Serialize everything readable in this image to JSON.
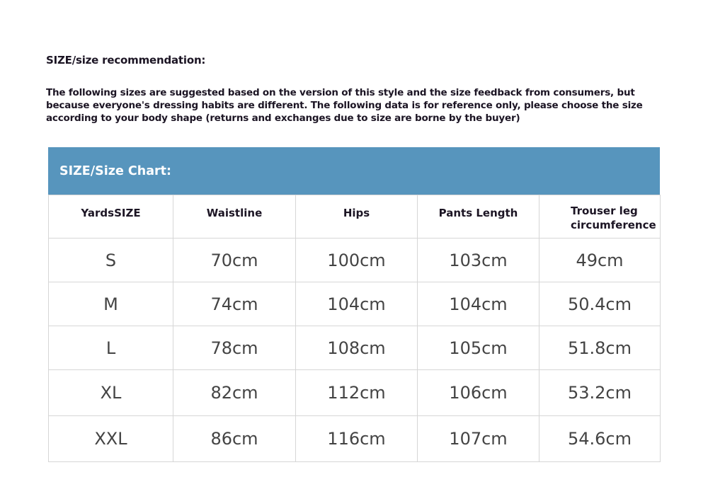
{
  "title": "SIZE/size recommendation:",
  "description": [
    "The following sizes are suggested based on the version of this style and the size feedback from consumers, but",
    "because everyone's dressing habits are different. The following data is for reference only, please choose the size",
    "according to your body shape (returns and exchanges due to size are borne by the buyer)"
  ],
  "chart": {
    "banner": "SIZE/Size Chart:",
    "banner_color": "#5795bd",
    "columns": [
      "YardsSIZE",
      "Waistline",
      "Hips",
      "Pants Length",
      "Trouser leg circumference"
    ],
    "last_column_lines": [
      "Trouser leg",
      "circumference"
    ],
    "rows": [
      [
        "S",
        "70cm",
        "100cm",
        "103cm",
        "49cm"
      ],
      [
        "M",
        "74cm",
        "104cm",
        "104cm",
        "50.4cm"
      ],
      [
        "L",
        "78cm",
        "108cm",
        "105cm",
        "51.8cm"
      ],
      [
        "XL",
        "82cm",
        "112cm",
        "106cm",
        "53.2cm"
      ],
      [
        "XXL",
        "86cm",
        "116cm",
        "107cm",
        "54.6cm"
      ]
    ]
  }
}
